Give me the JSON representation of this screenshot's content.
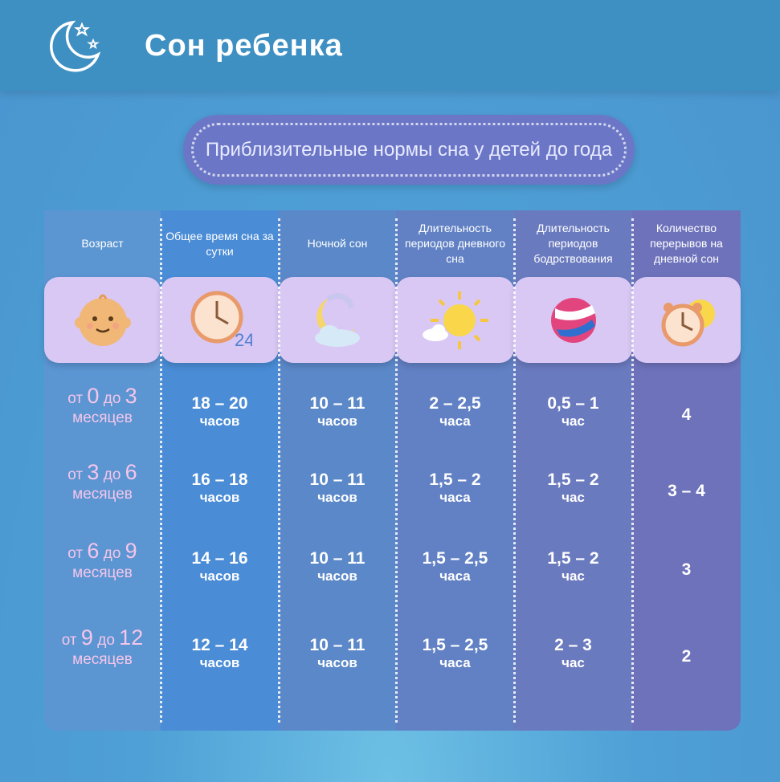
{
  "header": {
    "title": "Сон ребенка",
    "subtitle": "Приблизительные нормы сна у детей до года"
  },
  "table": {
    "columns": [
      "Возраст",
      "Общее время сна за сутки",
      "Ночной сон",
      "Длительность периодов дневного сна",
      "Длительность периодов бодрствования",
      "Количество перерывов на дневной сон"
    ],
    "rows": [
      {
        "age": [
          "от",
          "0",
          "до",
          "3",
          "месяцев"
        ],
        "cells": [
          [
            "18 – 20",
            "часов"
          ],
          [
            "10 – 11",
            "часов"
          ],
          [
            "2 – 2,5",
            "часа"
          ],
          [
            "0,5 – 1",
            "час"
          ],
          [
            "4"
          ]
        ]
      },
      {
        "age": [
          "от",
          "3",
          "до",
          "6",
          "месяцев"
        ],
        "cells": [
          [
            "16 – 18",
            "часов"
          ],
          [
            "10 – 11",
            "часов"
          ],
          [
            "1,5 – 2",
            "часа"
          ],
          [
            "1,5 – 2",
            "час"
          ],
          [
            "3 – 4"
          ]
        ]
      },
      {
        "age": [
          "от",
          "6",
          "до",
          "9",
          "месяцев"
        ],
        "cells": [
          [
            "14 – 16",
            "часов"
          ],
          [
            "10 – 11",
            "часов"
          ],
          [
            "1,5 – 2,5",
            "часа"
          ],
          [
            "1,5 – 2",
            "час"
          ],
          [
            "3"
          ]
        ]
      },
      {
        "age": [
          "от",
          "9",
          "до",
          "12",
          "месяцев"
        ],
        "cells": [
          [
            "12 – 14",
            "часов"
          ],
          [
            "10 – 11",
            "часов"
          ],
          [
            "1,5 – 2,5",
            "часа"
          ],
          [
            "2 – 3",
            "час"
          ],
          [
            "2"
          ]
        ]
      }
    ]
  }
}
